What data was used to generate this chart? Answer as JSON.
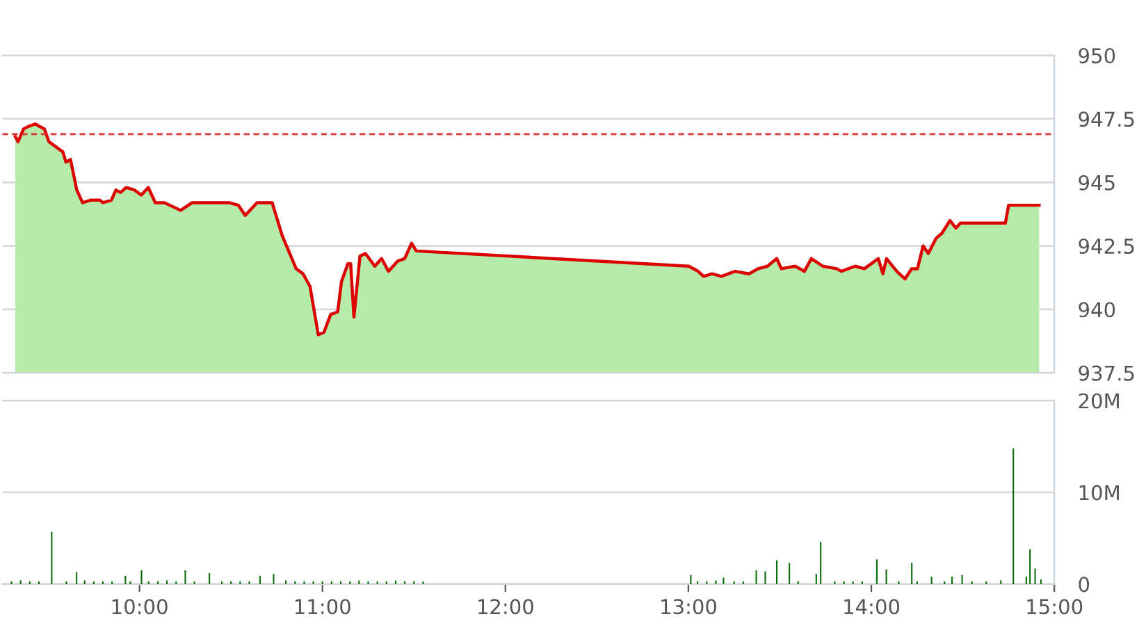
{
  "chart_data": [
    {
      "type": "area",
      "x": [
        9.321,
        9.336,
        9.366,
        9.392,
        9.43,
        9.48,
        9.505,
        9.543,
        9.581,
        9.598,
        9.623,
        9.657,
        9.689,
        9.733,
        9.783,
        9.801,
        9.846,
        9.871,
        9.896,
        9.927,
        9.972,
        10.01,
        10.048,
        10.086,
        10.136,
        10.225,
        10.288,
        10.339,
        10.427,
        10.49,
        10.54,
        10.578,
        10.642,
        10.692,
        10.725,
        10.78,
        10.856,
        10.894,
        10.932,
        10.977,
        11.008,
        11.045,
        11.083,
        11.104,
        11.139,
        11.154,
        11.172,
        11.205,
        11.235,
        11.286,
        11.323,
        11.361,
        11.411,
        11.449,
        11.487,
        11.513,
        13.002,
        13.053,
        13.083,
        13.129,
        13.18,
        13.255,
        13.331,
        13.381,
        13.432,
        13.483,
        13.508,
        13.583,
        13.634,
        13.672,
        13.735,
        13.811,
        13.836,
        13.911,
        13.962,
        14.038,
        14.063,
        14.083,
        14.139,
        14.184,
        14.22,
        14.252,
        14.283,
        14.311,
        14.354,
        14.386,
        14.43,
        14.462,
        14.487,
        14.733,
        14.75,
        14.917
      ],
      "series": [
        {
          "type": "area",
          "color": "#b5eba8",
          "values": [
            946.8,
            946.6,
            947.1,
            947.2,
            947.3,
            947.1,
            946.6,
            946.4,
            946.2,
            945.8,
            945.9,
            944.7,
            944.2,
            944.3,
            944.3,
            944.2,
            944.3,
            944.7,
            944.6,
            944.8,
            944.7,
            944.5,
            944.8,
            944.2,
            944.2,
            943.9,
            944.2,
            944.2,
            944.2,
            944.2,
            944.1,
            943.7,
            944.2,
            944.2,
            944.2,
            942.9,
            941.6,
            941.4,
            940.9,
            939.0,
            939.1,
            939.8,
            939.9,
            941.1,
            941.8,
            941.8,
            939.7,
            942.1,
            942.2,
            941.7,
            942.0,
            941.5,
            941.9,
            942.0,
            942.6,
            942.3,
            941.7,
            941.5,
            941.3,
            941.4,
            941.3,
            941.5,
            941.4,
            941.6,
            941.7,
            942.0,
            941.6,
            941.7,
            941.5,
            942.0,
            941.7,
            941.6,
            941.5,
            941.7,
            941.6,
            942.0,
            941.4,
            942.0,
            941.5,
            941.2,
            941.6,
            941.6,
            942.5,
            942.2,
            942.8,
            943.0,
            943.5,
            943.2,
            943.4,
            943.4,
            944.1,
            944.1
          ]
        },
        {
          "type": "line",
          "color": "#dd0000",
          "values": [
            946.8,
            946.6,
            947.1,
            947.2,
            947.3,
            947.1,
            946.6,
            946.4,
            946.2,
            945.8,
            945.9,
            944.7,
            944.2,
            944.3,
            944.3,
            944.2,
            944.3,
            944.7,
            944.6,
            944.8,
            944.7,
            944.5,
            944.8,
            944.2,
            944.2,
            943.9,
            944.2,
            944.2,
            944.2,
            944.2,
            944.1,
            943.7,
            944.2,
            944.2,
            944.2,
            942.9,
            941.6,
            941.4,
            940.9,
            939.0,
            939.1,
            939.8,
            939.9,
            941.1,
            941.8,
            941.8,
            939.7,
            942.1,
            942.2,
            941.7,
            942.0,
            941.5,
            941.9,
            942.0,
            942.6,
            942.3,
            941.7,
            941.5,
            941.3,
            941.4,
            941.3,
            941.5,
            941.4,
            941.6,
            941.7,
            942.0,
            941.6,
            941.7,
            941.5,
            942.0,
            941.7,
            941.6,
            941.5,
            941.7,
            941.6,
            942.0,
            941.4,
            942.0,
            941.5,
            941.2,
            941.6,
            941.6,
            942.5,
            942.2,
            942.8,
            943.0,
            943.5,
            943.2,
            943.4,
            943.4,
            944.1,
            944.1
          ]
        }
      ],
      "xlim": [
        9.25,
        15
      ],
      "ylim": [
        937.5,
        950
      ],
      "yticks": [
        950,
        947.5,
        945,
        942.5,
        940,
        937.5
      ],
      "grid": "y",
      "tick_labels": "y",
      "legend": false,
      "ref_lines": [
        {
          "axis": "y",
          "value": 946.9,
          "color": "#dd3333",
          "line_style": "dashed"
        }
      ]
    },
    {
      "type": "bar",
      "x": [
        9.3,
        9.35,
        9.4,
        9.45,
        9.52,
        9.6,
        9.656,
        9.7,
        9.75,
        9.8,
        9.85,
        9.923,
        9.95,
        10.011,
        10.05,
        10.1,
        10.15,
        10.2,
        10.25,
        10.3,
        10.382,
        10.45,
        10.5,
        10.55,
        10.6,
        10.659,
        10.733,
        10.8,
        10.85,
        10.9,
        10.95,
        11.0,
        11.05,
        11.1,
        11.15,
        11.2,
        11.25,
        11.3,
        11.35,
        11.4,
        11.45,
        11.5,
        11.55,
        13.013,
        13.05,
        13.1,
        13.15,
        13.192,
        13.25,
        13.3,
        13.371,
        13.42,
        13.483,
        13.552,
        13.6,
        13.699,
        13.723,
        13.8,
        13.85,
        13.9,
        13.95,
        14.03,
        14.082,
        14.15,
        14.221,
        14.25,
        14.329,
        14.4,
        14.441,
        14.496,
        14.55,
        14.628,
        14.708,
        14.776,
        14.847,
        14.867,
        14.895,
        14.927
      ],
      "series": [
        {
          "color": "#0a6e0a",
          "values": [
            0.3,
            0.4,
            0.3,
            0.3,
            5.7,
            0.3,
            1.3,
            0.4,
            0.3,
            0.3,
            0.3,
            0.9,
            0.3,
            1.5,
            0.3,
            0.3,
            0.4,
            0.3,
            1.5,
            0.3,
            1.2,
            0.3,
            0.3,
            0.3,
            0.3,
            0.9,
            1.1,
            0.4,
            0.3,
            0.3,
            0.3,
            0.3,
            0.3,
            0.3,
            0.3,
            0.4,
            0.3,
            0.3,
            0.3,
            0.4,
            0.3,
            0.3,
            0.3,
            1.0,
            0.3,
            0.3,
            0.4,
            0.7,
            0.3,
            0.3,
            1.5,
            1.4,
            2.6,
            2.3,
            0.3,
            1.1,
            4.6,
            0.3,
            0.3,
            0.3,
            0.3,
            2.7,
            1.6,
            0.3,
            2.3,
            0.3,
            0.8,
            0.3,
            0.8,
            1.0,
            0.3,
            0.3,
            0.4,
            14.8,
            0.8,
            3.8,
            1.7,
            0.5
          ]
        }
      ],
      "xlim": [
        9.25,
        15
      ],
      "xticks": [
        {
          "value": 10,
          "label": "10:00"
        },
        {
          "value": 11,
          "label": "11:00"
        },
        {
          "value": 12,
          "label": "12:00"
        },
        {
          "value": 13,
          "label": "13:00"
        },
        {
          "value": 14,
          "label": "14:00"
        },
        {
          "value": 15,
          "label": "15:00"
        }
      ],
      "ylim": [
        0,
        20
      ],
      "yticks": [
        {
          "value": 0,
          "label": "0"
        },
        {
          "value": 10,
          "label": "10M"
        },
        {
          "value": 20,
          "label": "20M"
        }
      ],
      "grid": "y",
      "legend": false
    }
  ]
}
